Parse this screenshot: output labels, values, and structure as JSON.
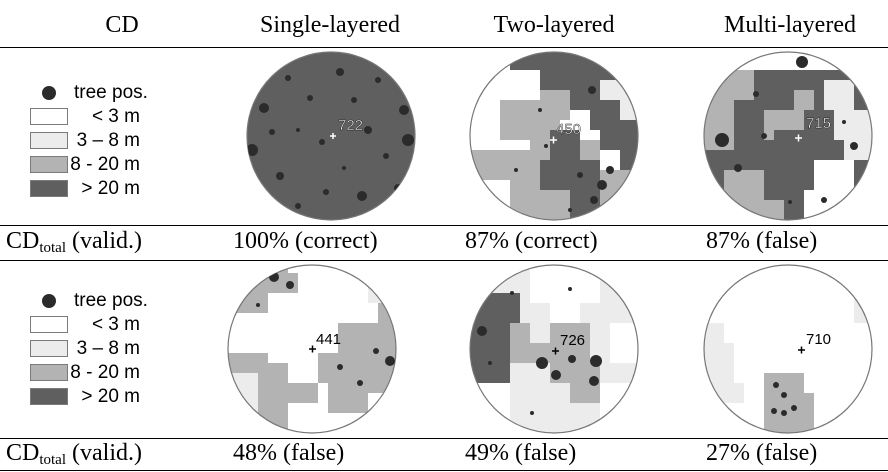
{
  "headers": [
    "CD",
    "Single-layered",
    "Two-layered",
    "Multi-layered"
  ],
  "legend": {
    "tree_label": "tree pos.",
    "classes": [
      {
        "label": "< 3 m",
        "color": "#ffffff"
      },
      {
        "label": "3 – 8 m",
        "color": "#ececec"
      },
      {
        "label": "8 - 20 m",
        "color": "#b3b3b3"
      },
      {
        "label": "> 20 m",
        "color": "#5f5f5f"
      }
    ],
    "tree_color": "#2b2b2b"
  },
  "rows": [
    {
      "result_label_main": "CD",
      "result_label_sub": "total",
      "result_label_tail": " (valid.)",
      "plots": [
        {
          "id": "722",
          "result": "100% (correct)"
        },
        {
          "id": "450",
          "result": "87% (correct)"
        },
        {
          "id": "715",
          "result": "87% (false)"
        }
      ]
    },
    {
      "result_label_main": "CD",
      "result_label_sub": "total",
      "result_label_tail": " (valid.)",
      "plots": [
        {
          "id": "441",
          "result": "48% (false)"
        },
        {
          "id": "726",
          "result": "49% (false)"
        },
        {
          "id": "710",
          "result": "27% (false)"
        }
      ]
    }
  ]
}
